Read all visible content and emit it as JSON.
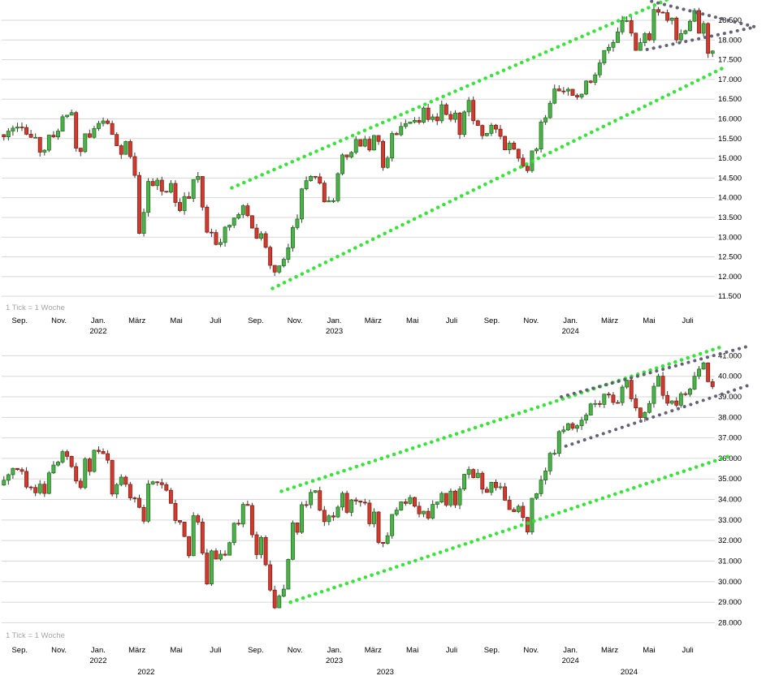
{
  "colors": {
    "background": "#ffffff",
    "up": "#4db04a",
    "up_border": "#166b16",
    "down": "#cf3b2e",
    "down_border": "#7c150c",
    "wick": "#3a3a3a",
    "grid": "#d7d7d7",
    "axis_text": "#000000",
    "note_text": "#a5a5a5",
    "channel": "#32e132",
    "wedge": "#5d5a70"
  },
  "chart_data": [
    {
      "type": "candlestick",
      "name": "index-weekly-upper",
      "tick_note": "1 Tick = 1 Woche",
      "interval": "1 Woche",
      "y_axis": {
        "min": 11400,
        "max": 18850,
        "grid_start": 11500,
        "grid_end": 18500,
        "grid_step": 500
      },
      "first_open": 15600,
      "weekly_closes": [
        15544,
        15690,
        15765,
        15793,
        15781,
        15610,
        15531,
        15532,
        15156,
        15206,
        15587,
        15543,
        15689,
        16054,
        16094,
        16160,
        15257,
        15170,
        15623,
        15532,
        15754,
        15885,
        15948,
        15883,
        15604,
        15319,
        15100,
        15425,
        15043,
        14567,
        13095,
        13628,
        14414,
        14306,
        14446,
        14163,
        14142,
        14362,
        13880,
        13674,
        14028,
        13982,
        14462,
        14540,
        13762,
        13126,
        13118,
        12813,
        12865,
        13254,
        13304,
        13484,
        13574,
        13796,
        13545,
        13230,
        12971,
        13088,
        12742,
        12284,
        12114,
        12273,
        12438,
        12731,
        13244,
        13460,
        14225,
        14432,
        14542,
        14529,
        14371,
        13894,
        13924,
        13924,
        14610,
        15087,
        15034,
        15150,
        15476,
        15308,
        15482,
        15210,
        15578,
        15428,
        14768,
        15007,
        15628,
        15598,
        15808,
        15881,
        15922,
        15961,
        15914,
        16275,
        15984,
        16051,
        15950,
        16358,
        16112,
        15988,
        16148,
        15603,
        16177,
        16469,
        15952,
        15833,
        15574,
        15632,
        15840,
        15740,
        15557,
        15215,
        15387,
        15230,
        15003,
        14798,
        14687,
        15189,
        15234,
        15919,
        16029,
        16397,
        16759,
        16707,
        16706,
        16751,
        16594,
        16555,
        16628,
        16961,
        16926,
        17117,
        17419,
        17735,
        17815,
        17936,
        18206,
        18492,
        18492,
        18175,
        17737,
        17932,
        18161,
        18002,
        18773,
        18705,
        18694,
        18497,
        18557,
        18003,
        18164,
        18235,
        18475,
        18748,
        18172,
        18418,
        17661,
        17722
      ],
      "x_axis": {
        "month_labels": [
          {
            "label": "Sep.",
            "week": 4
          },
          {
            "label": "Nov.",
            "week": 12.7
          },
          {
            "label": "Jan.",
            "week": 21.4,
            "year": "2022"
          },
          {
            "label": "März",
            "week": 30
          },
          {
            "label": "Mai",
            "week": 38.7
          },
          {
            "label": "Juli",
            "week": 47.4
          },
          {
            "label": "Sep.",
            "week": 56.3
          },
          {
            "label": "Nov.",
            "week": 65
          },
          {
            "label": "Jan.",
            "week": 73.7,
            "year": "2023"
          },
          {
            "label": "März",
            "week": 82.3
          },
          {
            "label": "Mai",
            "week": 91
          },
          {
            "label": "Juli",
            "week": 99.7
          },
          {
            "label": "Sep.",
            "week": 108.6
          },
          {
            "label": "Nov.",
            "week": 117.3
          },
          {
            "label": "Jan.",
            "week": 126,
            "year": "2024"
          },
          {
            "label": "März",
            "week": 134.7
          },
          {
            "label": "Mai",
            "week": 143.4
          },
          {
            "label": "Juli",
            "week": 152
          }
        ],
        "mid_year_labels": []
      },
      "trendlines": [
        {
          "name": "channel-upper",
          "color": "#32e132",
          "width": 4.5,
          "from": [
            51,
            14250
          ],
          "to": [
            151,
            19200
          ]
        },
        {
          "name": "channel-lower",
          "color": "#32e132",
          "width": 4.5,
          "from": [
            60,
            11700
          ],
          "to": [
            160,
            17300
          ]
        },
        {
          "name": "wedge-upper",
          "color": "#5d5a70",
          "width": 4,
          "from": [
            144,
            18980
          ],
          "to": [
            167,
            18330
          ]
        },
        {
          "name": "wedge-lower",
          "color": "#5d5a70",
          "width": 4,
          "from": [
            143,
            17760
          ],
          "to": [
            167,
            18330
          ]
        }
      ]
    },
    {
      "type": "candlestick",
      "name": "index-weekly-lower",
      "tick_note": "1 Tick = 1 Woche",
      "interval": "1 Woche",
      "y_axis": {
        "min": 27700,
        "max": 41450,
        "grid_start": 28000,
        "grid_end": 41000,
        "grid_step": 1000
      },
      "first_open": 34700,
      "weekly_closes": [
        34935,
        35209,
        35515,
        35456,
        35369,
        34608,
        34585,
        34326,
        34746,
        34294,
        35295,
        35677,
        35820,
        36328,
        36100,
        35602,
        34899,
        34580,
        35971,
        35366,
        36398,
        36338,
        36232,
        35912,
        34265,
        34725,
        35090,
        34738,
        34079,
        34059,
        33615,
        32944,
        34755,
        34861,
        34818,
        34722,
        34451,
        33811,
        32977,
        32899,
        32197,
        31262,
        33213,
        32900,
        31393,
        29889,
        31500,
        31097,
        31338,
        31288,
        31899,
        32845,
        32803,
        33761,
        33707,
        32283,
        31318,
        32152,
        30822,
        29590,
        28726,
        29297,
        29635,
        31083,
        32862,
        32403,
        33748,
        33746,
        34347,
        34429,
        33476,
        32920,
        33204,
        33147,
        33631,
        34303,
        33375,
        33978,
        33926,
        33869,
        33827,
        32817,
        33391,
        31910,
        31862,
        32238,
        33274,
        33485,
        33886,
        33809,
        34098,
        33674,
        33301,
        33427,
        33093,
        33763,
        33877,
        34299,
        33727,
        34408,
        33735,
        34509,
        35228,
        35459,
        35066,
        35281,
        34501,
        34347,
        34838,
        34577,
        34618,
        33964,
        33508,
        33408,
        33670,
        33127,
        32418,
        34061,
        34283,
        34947,
        35390,
        36246,
        36248,
        37306,
        37386,
        37690,
        37466,
        37593,
        37864,
        38109,
        38654,
        38672,
        38628,
        39132,
        39087,
        38723,
        38715,
        39475,
        39807,
        38904,
        38459,
        37986,
        38240,
        38676,
        39513,
        40004,
        39070,
        38686,
        38799,
        38589,
        39150,
        39119,
        39376,
        40001,
        40350,
        40650,
        39737,
        39497
      ],
      "x_axis": {
        "month_labels": [
          {
            "label": "Sep.",
            "week": 4
          },
          {
            "label": "Nov.",
            "week": 12.7
          },
          {
            "label": "Jan.",
            "week": 21.4,
            "year": "2022"
          },
          {
            "label": "März",
            "week": 30
          },
          {
            "label": "Mai",
            "week": 38.7
          },
          {
            "label": "Juli",
            "week": 47.4
          },
          {
            "label": "Sep.",
            "week": 56.3
          },
          {
            "label": "Nov.",
            "week": 65
          },
          {
            "label": "Jan.",
            "week": 73.7,
            "year": "2023"
          },
          {
            "label": "März",
            "week": 82.3
          },
          {
            "label": "Mai",
            "week": 91
          },
          {
            "label": "Juli",
            "week": 99.7
          },
          {
            "label": "Sep.",
            "week": 108.6
          },
          {
            "label": "Nov.",
            "week": 117.3
          },
          {
            "label": "Jan.",
            "week": 126,
            "year": "2024"
          },
          {
            "label": "März",
            "week": 134.7
          },
          {
            "label": "Mai",
            "week": 143.4
          },
          {
            "label": "Juli",
            "week": 152
          }
        ],
        "mid_year_labels": [
          {
            "label": "2022",
            "week": 32
          },
          {
            "label": "2023",
            "week": 85
          },
          {
            "label": "2024",
            "week": 139
          }
        ]
      },
      "trendlines": [
        {
          "name": "channel-upper",
          "color": "#32e132",
          "width": 4.5,
          "from": [
            62,
            34400
          ],
          "to": [
            159,
            41400
          ]
        },
        {
          "name": "channel-lower",
          "color": "#32e132",
          "width": 4.5,
          "from": [
            64,
            29000
          ],
          "to": [
            161,
            36100
          ]
        },
        {
          "name": "wedge-upper",
          "color": "#5d5a70",
          "width": 4,
          "from": [
            124,
            39000
          ],
          "to": [
            166,
            41500
          ]
        },
        {
          "name": "wedge-lower",
          "color": "#5d5a70",
          "width": 4,
          "from": [
            125,
            36600
          ],
          "to": [
            166,
            39600
          ]
        }
      ]
    }
  ]
}
